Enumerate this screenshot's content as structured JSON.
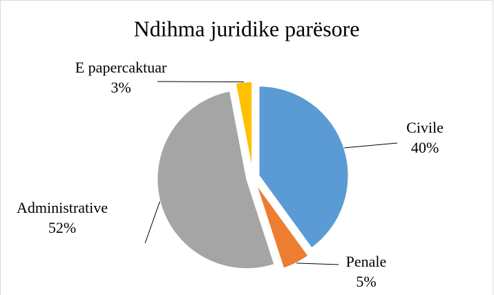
{
  "chart_data": {
    "type": "pie",
    "title": "Ndihma juridike parësore",
    "categories": [
      "Civile",
      "Penale",
      "Administrative",
      "E papercaktuar"
    ],
    "values": [
      40,
      5,
      52,
      3
    ],
    "value_labels": [
      "40%",
      "5%",
      "52%",
      "3%"
    ],
    "colors": [
      "#5b9bd5",
      "#ed7d31",
      "#a5a5a5",
      "#ffc000"
    ]
  }
}
